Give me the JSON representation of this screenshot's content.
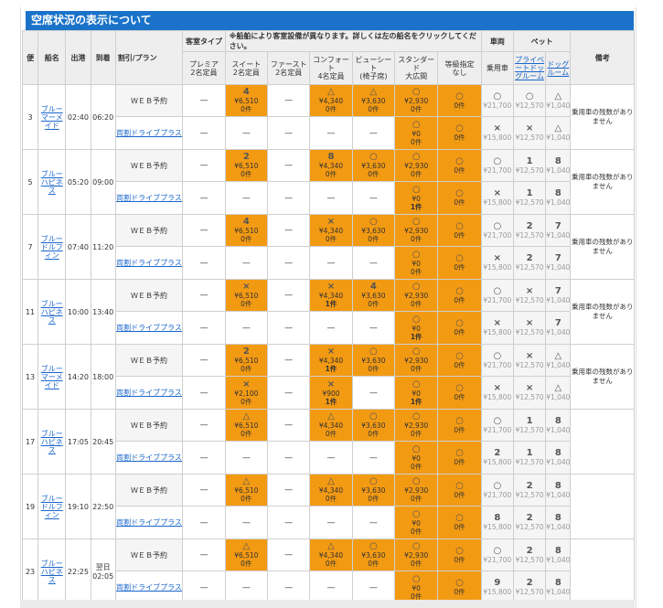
{
  "page_title": "空席状況の表示について",
  "headers": {
    "bin": "便",
    "ship": "船名",
    "dep": "出港",
    "arr": "到着",
    "plan": "割引/プラン",
    "room_type": "客室タイプ",
    "notice": "※船舶により客室設備が異なります。詳しくは左の船名をクリックしてください。",
    "vehicle": "車両",
    "pet": "ペット",
    "remarks": "備考",
    "rooms": [
      "プレミア\n2名定員",
      "スイート\n2名定員",
      "ファースト\n2名定員",
      "コンフォート\n4名定員",
      "ビューシート\n(椅子席)",
      "スタンダード\n大広間",
      "等級指定\nなし"
    ],
    "vehicle_sub": "乗用車",
    "pet_sub": [
      "プライベートドッグルーム",
      "ドッグルーム"
    ]
  },
  "plans": {
    "web": "ＷＥＢ予約",
    "drive": "両割ドライブプラス"
  },
  "sailings": [
    {
      "bin": "3",
      "ship": "ブルーマーメイド",
      "dep": "02:40",
      "arr": "06:20",
      "web": [
        [
          "—"
        ],
        [
          "4",
          "¥6,510",
          "0件"
        ],
        [
          "—"
        ],
        [
          "△",
          "¥4,340",
          "0件"
        ],
        [
          "△",
          "¥3,630",
          "0件"
        ],
        [
          "○",
          "¥2,930",
          "0件"
        ],
        [
          "○",
          "0件"
        ]
      ],
      "drive": [
        [
          "—"
        ],
        [
          "—"
        ],
        [
          "—"
        ],
        [
          "—"
        ],
        [
          "—"
        ],
        [
          "○",
          "¥0",
          "0件"
        ],
        [
          "○",
          "0件"
        ]
      ],
      "web_v": [
        "○",
        "¥21,700"
      ],
      "web_p": [
        [
          "○",
          "¥12,570"
        ],
        [
          "△",
          "¥1,040"
        ]
      ],
      "drive_v": [
        "×",
        "¥15,800"
      ],
      "drive_p": [
        [
          "×",
          "¥12,570"
        ],
        [
          "△",
          "¥1,040"
        ]
      ],
      "note": "乗用車の残数がありません"
    },
    {
      "bin": "5",
      "ship": "ブルーハピネス",
      "dep": "05:20",
      "arr": "09:00",
      "web": [
        [
          "—"
        ],
        [
          "2",
          "¥6,510",
          "0件"
        ],
        [
          "—"
        ],
        [
          "8",
          "¥4,340",
          "0件"
        ],
        [
          "○",
          "¥3,630",
          "0件"
        ],
        [
          "○",
          "¥2,930",
          "0件"
        ],
        [
          "○",
          "0件"
        ]
      ],
      "drive": [
        [
          "—"
        ],
        [
          "—"
        ],
        [
          "—"
        ],
        [
          "—"
        ],
        [
          "—"
        ],
        [
          "○",
          "¥0",
          "1件"
        ],
        [
          "○",
          "0件"
        ]
      ],
      "web_v": [
        "○",
        "¥21,700"
      ],
      "web_p": [
        [
          "1",
          "¥12,570"
        ],
        [
          "8",
          "¥1,040"
        ]
      ],
      "drive_v": [
        "×",
        "¥15,800"
      ],
      "drive_p": [
        [
          "1",
          "¥12,570"
        ],
        [
          "8",
          "¥1,040"
        ]
      ],
      "note": "乗用車の残数がありません"
    },
    {
      "bin": "7",
      "ship": "ブルードルフィン",
      "dep": "07:40",
      "arr": "11:20",
      "web": [
        [
          "—"
        ],
        [
          "4",
          "¥6,510",
          "0件"
        ],
        [
          "—"
        ],
        [
          "×",
          "¥4,340",
          "0件"
        ],
        [
          "○",
          "¥3,630",
          "0件"
        ],
        [
          "○",
          "¥2,930",
          "0件"
        ],
        [
          "○",
          "0件"
        ]
      ],
      "drive": [
        [
          "—"
        ],
        [
          "—"
        ],
        [
          "—"
        ],
        [
          "—"
        ],
        [
          "—"
        ],
        [
          "○",
          "¥0",
          "0件"
        ],
        [
          "○",
          "0件"
        ]
      ],
      "web_v": [
        "○",
        "¥21,700"
      ],
      "web_p": [
        [
          "2",
          "¥12,570"
        ],
        [
          "7",
          "¥1,040"
        ]
      ],
      "drive_v": [
        "×",
        "¥15,800"
      ],
      "drive_p": [
        [
          "2",
          "¥12,570"
        ],
        [
          "7",
          "¥1,040"
        ]
      ],
      "note": "乗用車の残数がありません"
    },
    {
      "bin": "11",
      "ship": "ブルーハピネス",
      "dep": "10:00",
      "arr": "13:40",
      "web": [
        [
          "—"
        ],
        [
          "×",
          "¥6,510",
          "0件"
        ],
        [
          "—"
        ],
        [
          "×",
          "¥4,340",
          "1件"
        ],
        [
          "4",
          "¥3,630",
          "0件"
        ],
        [
          "○",
          "¥2,930",
          "0件"
        ],
        [
          "○",
          "0件"
        ]
      ],
      "drive": [
        [
          "—"
        ],
        [
          "—"
        ],
        [
          "—"
        ],
        [
          "—"
        ],
        [
          "—"
        ],
        [
          "○",
          "¥0",
          "1件"
        ],
        [
          "○",
          "0件"
        ]
      ],
      "web_v": [
        "○",
        "¥21,700"
      ],
      "web_p": [
        [
          "×",
          "¥12,570"
        ],
        [
          "7",
          "¥1,040"
        ]
      ],
      "drive_v": [
        "×",
        "¥15,800"
      ],
      "drive_p": [
        [
          "×",
          "¥12,570"
        ],
        [
          "7",
          "¥1,040"
        ]
      ],
      "note": "乗用車の残数がありません"
    },
    {
      "bin": "13",
      "ship": "ブルーマーメイド",
      "dep": "14:20",
      "arr": "18:00",
      "web": [
        [
          "—"
        ],
        [
          "2",
          "¥6,510",
          "0件"
        ],
        [
          "—"
        ],
        [
          "×",
          "¥4,340",
          "1件"
        ],
        [
          "○",
          "¥3,630",
          "0件"
        ],
        [
          "○",
          "¥2,930",
          "0件"
        ],
        [
          "○",
          "0件"
        ]
      ],
      "drive": [
        [
          "—"
        ],
        [
          "×",
          "¥2,100",
          "0件"
        ],
        [
          "—"
        ],
        [
          "×",
          "¥900",
          "1件"
        ],
        [
          "—"
        ],
        [
          "○",
          "¥0",
          "1件"
        ],
        [
          "○",
          "0件"
        ]
      ],
      "web_v": [
        "○",
        "¥21,700"
      ],
      "web_p": [
        [
          "×",
          "¥12,570"
        ],
        [
          "△",
          "¥1,040"
        ]
      ],
      "drive_v": [
        "×",
        "¥15,800"
      ],
      "drive_p": [
        [
          "×",
          "¥12,570"
        ],
        [
          "△",
          "¥1,040"
        ]
      ],
      "note": "乗用車の残数がありません"
    },
    {
      "bin": "17",
      "ship": "ブルーハピネス",
      "dep": "17:05",
      "arr": "20:45",
      "web": [
        [
          "—"
        ],
        [
          "△",
          "¥6,510",
          "0件"
        ],
        [
          "—"
        ],
        [
          "△",
          "¥4,340",
          "0件"
        ],
        [
          "○",
          "¥3,630",
          "0件"
        ],
        [
          "○",
          "¥2,930",
          "0件"
        ],
        [
          "○",
          "0件"
        ]
      ],
      "drive": [
        [
          "—"
        ],
        [
          "—"
        ],
        [
          "—"
        ],
        [
          "—"
        ],
        [
          "—"
        ],
        [
          "○",
          "¥0",
          "0件"
        ],
        [
          "○",
          "0件"
        ]
      ],
      "web_v": [
        "○",
        "¥21,700"
      ],
      "web_p": [
        [
          "1",
          "¥12,570"
        ],
        [
          "8",
          "¥1,040"
        ]
      ],
      "drive_v": [
        "2",
        "¥15,800"
      ],
      "drive_p": [
        [
          "1",
          "¥12,570"
        ],
        [
          "8",
          "¥1,040"
        ]
      ],
      "note": ""
    },
    {
      "bin": "19",
      "ship": "ブルードルフィン",
      "dep": "19:10",
      "arr": "22:50",
      "web": [
        [
          "—"
        ],
        [
          "△",
          "¥6,510",
          "0件"
        ],
        [
          "—"
        ],
        [
          "△",
          "¥4,340",
          "0件"
        ],
        [
          "○",
          "¥3,630",
          "0件"
        ],
        [
          "○",
          "¥2,930",
          "0件"
        ],
        [
          "○",
          "0件"
        ]
      ],
      "drive": [
        [
          "—"
        ],
        [
          "—"
        ],
        [
          "—"
        ],
        [
          "—"
        ],
        [
          "—"
        ],
        [
          "○",
          "¥0",
          "0件"
        ],
        [
          "○",
          "0件"
        ]
      ],
      "web_v": [
        "○",
        "¥21,700"
      ],
      "web_p": [
        [
          "2",
          "¥12,570"
        ],
        [
          "8",
          "¥1,040"
        ]
      ],
      "drive_v": [
        "8",
        "¥15,800"
      ],
      "drive_p": [
        [
          "2",
          "¥12,570"
        ],
        [
          "8",
          "¥1,040"
        ]
      ],
      "note": ""
    },
    {
      "bin": "23",
      "ship": "ブルーハピネス",
      "dep": "22:25",
      "arr": "02:05",
      "arr_prefix": "翌日",
      "web": [
        [
          "—"
        ],
        [
          "△",
          "¥6,510",
          "0件"
        ],
        [
          "—"
        ],
        [
          "△",
          "¥4,340",
          "0件"
        ],
        [
          "○",
          "¥3,630",
          "0件"
        ],
        [
          "○",
          "¥2,930",
          "0件"
        ],
        [
          "○",
          "0件"
        ]
      ],
      "drive": [
        [
          "—"
        ],
        [
          "—"
        ],
        [
          "—"
        ],
        [
          "—"
        ],
        [
          "—"
        ],
        [
          "○",
          "¥0",
          "0件"
        ],
        [
          "○",
          "0件"
        ]
      ],
      "web_v": [
        "○",
        "¥21,700"
      ],
      "web_p": [
        [
          "2",
          "¥12,570"
        ],
        [
          "8",
          "¥1,040"
        ]
      ],
      "drive_v": [
        "9",
        "¥15,800"
      ],
      "drive_p": [
        [
          "2",
          "¥12,570"
        ],
        [
          "8",
          "¥1,040"
        ]
      ],
      "note": ""
    }
  ],
  "colors": {
    "header_blue": "#1a73c9",
    "available_orange": "#f39a13",
    "link_blue": "#1a66cc"
  }
}
